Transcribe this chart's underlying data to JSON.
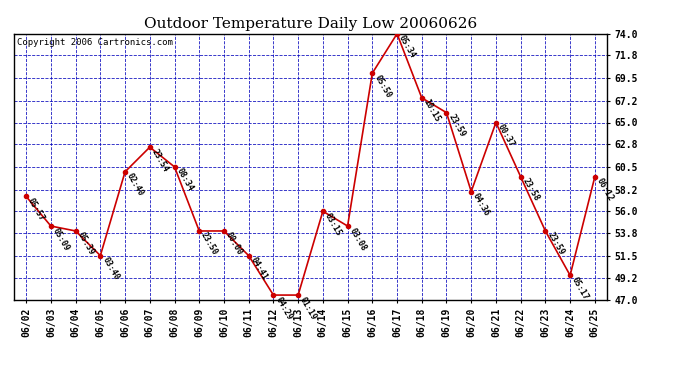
{
  "title": "Outdoor Temperature Daily Low 20060626",
  "copyright": "Copyright 2006 Cartronics.com",
  "dates": [
    "06/02",
    "06/03",
    "06/04",
    "06/05",
    "06/06",
    "06/07",
    "06/08",
    "06/09",
    "06/10",
    "06/11",
    "06/12",
    "06/13",
    "06/14",
    "06/15",
    "06/16",
    "06/17",
    "06/18",
    "06/19",
    "06/20",
    "06/21",
    "06/22",
    "06/23",
    "06/24",
    "06/25"
  ],
  "values": [
    57.5,
    54.5,
    54.0,
    51.5,
    60.0,
    62.5,
    60.5,
    54.0,
    54.0,
    51.5,
    47.5,
    47.5,
    56.0,
    54.5,
    70.0,
    74.0,
    67.5,
    66.0,
    58.0,
    65.0,
    59.5,
    54.0,
    49.5,
    59.5
  ],
  "labels": [
    "05:57",
    "05:09",
    "05:39",
    "03:40",
    "02:40",
    "23:54",
    "08:34",
    "23:50",
    "00:00",
    "04:41",
    "04:29",
    "01:19",
    "03:15",
    "03:08",
    "05:50",
    "05:34",
    "10:15",
    "23:59",
    "04:36",
    "00:37",
    "23:58",
    "23:59",
    "05:17",
    "06:12"
  ],
  "ylim": [
    47.0,
    74.0
  ],
  "yticks": [
    47.0,
    49.2,
    51.5,
    53.8,
    56.0,
    58.2,
    60.5,
    62.8,
    65.0,
    67.2,
    69.5,
    71.8,
    74.0
  ],
  "line_color": "#cc0000",
  "marker_color": "#cc0000",
  "bg_color": "#ffffff",
  "plot_bg_color": "#ffffff",
  "grid_color": "#0000bb",
  "text_color": "#000000",
  "title_fontsize": 11,
  "label_fontsize": 6.0,
  "tick_fontsize": 7.0,
  "copyright_fontsize": 6.5
}
